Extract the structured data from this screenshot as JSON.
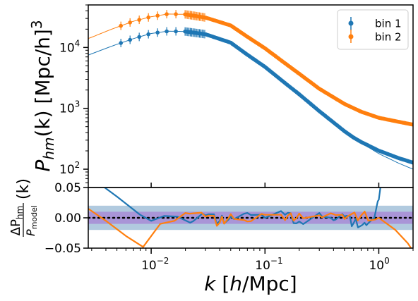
{
  "chart_data": [
    {
      "type": "line",
      "panel": "top",
      "xscale": "log",
      "yscale": "log",
      "xlim": [
        0.0028,
        2.0
      ],
      "ylim": [
        50,
        50000
      ],
      "ylabel_parts": {
        "P": "P",
        "sub": "hm",
        "mid": "(k) [Mpc/h]",
        "sup": "3"
      },
      "y_ticks": [
        {
          "value": 100,
          "base": "10",
          "exp": "2"
        },
        {
          "value": 1000,
          "base": "10",
          "exp": "3"
        },
        {
          "value": 10000,
          "base": "10",
          "exp": "4"
        }
      ],
      "legend": {
        "placement": "top-right",
        "entries": [
          "bin 1",
          "bin 2"
        ]
      },
      "series": [
        {
          "name": "bin 1",
          "color": "#1f77b4",
          "x": [
            0.0028,
            0.0045,
            0.007,
            0.01,
            0.014,
            0.02,
            0.03,
            0.05,
            0.07,
            0.1,
            0.15,
            0.2,
            0.3,
            0.5,
            0.7,
            1.0,
            1.5,
            2.0
          ],
          "y": [
            7500,
            10500,
            14000,
            17000,
            18500,
            18300,
            16500,
            12000,
            7600,
            4800,
            2600,
            1700,
            900,
            420,
            270,
            180,
            125,
            100
          ]
        },
        {
          "name": "bin 2",
          "color": "#ff7f0e",
          "x": [
            0.0028,
            0.0045,
            0.007,
            0.01,
            0.014,
            0.02,
            0.03,
            0.05,
            0.07,
            0.1,
            0.15,
            0.2,
            0.3,
            0.5,
            0.7,
            1.0,
            1.5,
            2.0
          ],
          "y": [
            14000,
            20000,
            27000,
            32000,
            35500,
            35000,
            31000,
            23000,
            15000,
            9700,
            5500,
            3700,
            2100,
            1180,
            880,
            700,
            600,
            540
          ]
        }
      ]
    },
    {
      "type": "line",
      "panel": "bottom",
      "xscale": "log",
      "xlim": [
        0.0028,
        2.0
      ],
      "ylim": [
        -0.05,
        0.05
      ],
      "ylabel_parts": {
        "num": "ΔP",
        "num_sub": "hm",
        "den": "P",
        "den_sub": "model",
        "tail": "(k)"
      },
      "y_ticks": [
        {
          "value": 0.05,
          "label": "0.05"
        },
        {
          "value": 0.0,
          "label": "0.00"
        },
        {
          "value": -0.05,
          "label": "−0.05"
        }
      ],
      "x_ticks": [
        {
          "value": 0.01,
          "base": "10",
          "exp": "−2"
        },
        {
          "value": 0.1,
          "base": "10",
          "exp": "−1"
        },
        {
          "value": 1.0,
          "base": "10",
          "exp": "0"
        }
      ],
      "xlabel_parts": {
        "k": "k",
        "rest": " [",
        "h": "h",
        "unit": "/Mpc]"
      },
      "bands": [
        {
          "range": [
            -0.02,
            0.02
          ],
          "color": "#a8c4dc"
        },
        {
          "range": [
            -0.01,
            0.01
          ],
          "color": "#a98fd6"
        }
      ],
      "reference_line": {
        "value": 0.0,
        "style": "dotted"
      },
      "series": [
        {
          "name": "bin 1",
          "color": "#1f77b4",
          "x": [
            0.0028,
            0.005,
            0.008,
            0.01,
            0.013,
            0.017,
            0.022,
            0.03,
            0.04,
            0.05,
            0.07,
            0.1,
            0.15,
            0.2,
            0.3,
            0.4,
            0.5,
            0.6,
            0.75,
            0.9,
            1.0,
            1.05
          ],
          "y": [
            0.07,
            0.035,
            0.005,
            -0.005,
            0.003,
            0.002,
            -0.008,
            0.004,
            -0.005,
            0.002,
            0.008,
            0.0,
            0.005,
            -0.006,
            0.008,
            -0.004,
            0.002,
            -0.009,
            -0.008,
            -0.002,
            0.03,
            0.06
          ]
        },
        {
          "name": "bin 2",
          "color": "#ff7f0e",
          "x": [
            0.0028,
            0.004,
            0.006,
            0.0085,
            0.012,
            0.016,
            0.02,
            0.03,
            0.04,
            0.05,
            0.07,
            0.1,
            0.15,
            0.2,
            0.3,
            0.4,
            0.5,
            0.7,
            1.0,
            1.4,
            1.8,
            2.0
          ],
          "y": [
            0.015,
            -0.005,
            -0.03,
            -0.048,
            -0.01,
            -0.005,
            0.008,
            0.002,
            -0.008,
            0.006,
            -0.006,
            0.005,
            -0.004,
            0.007,
            0.004,
            0.006,
            -0.002,
            0.004,
            0.0,
            -0.02,
            -0.042,
            -0.055
          ]
        }
      ]
    }
  ]
}
